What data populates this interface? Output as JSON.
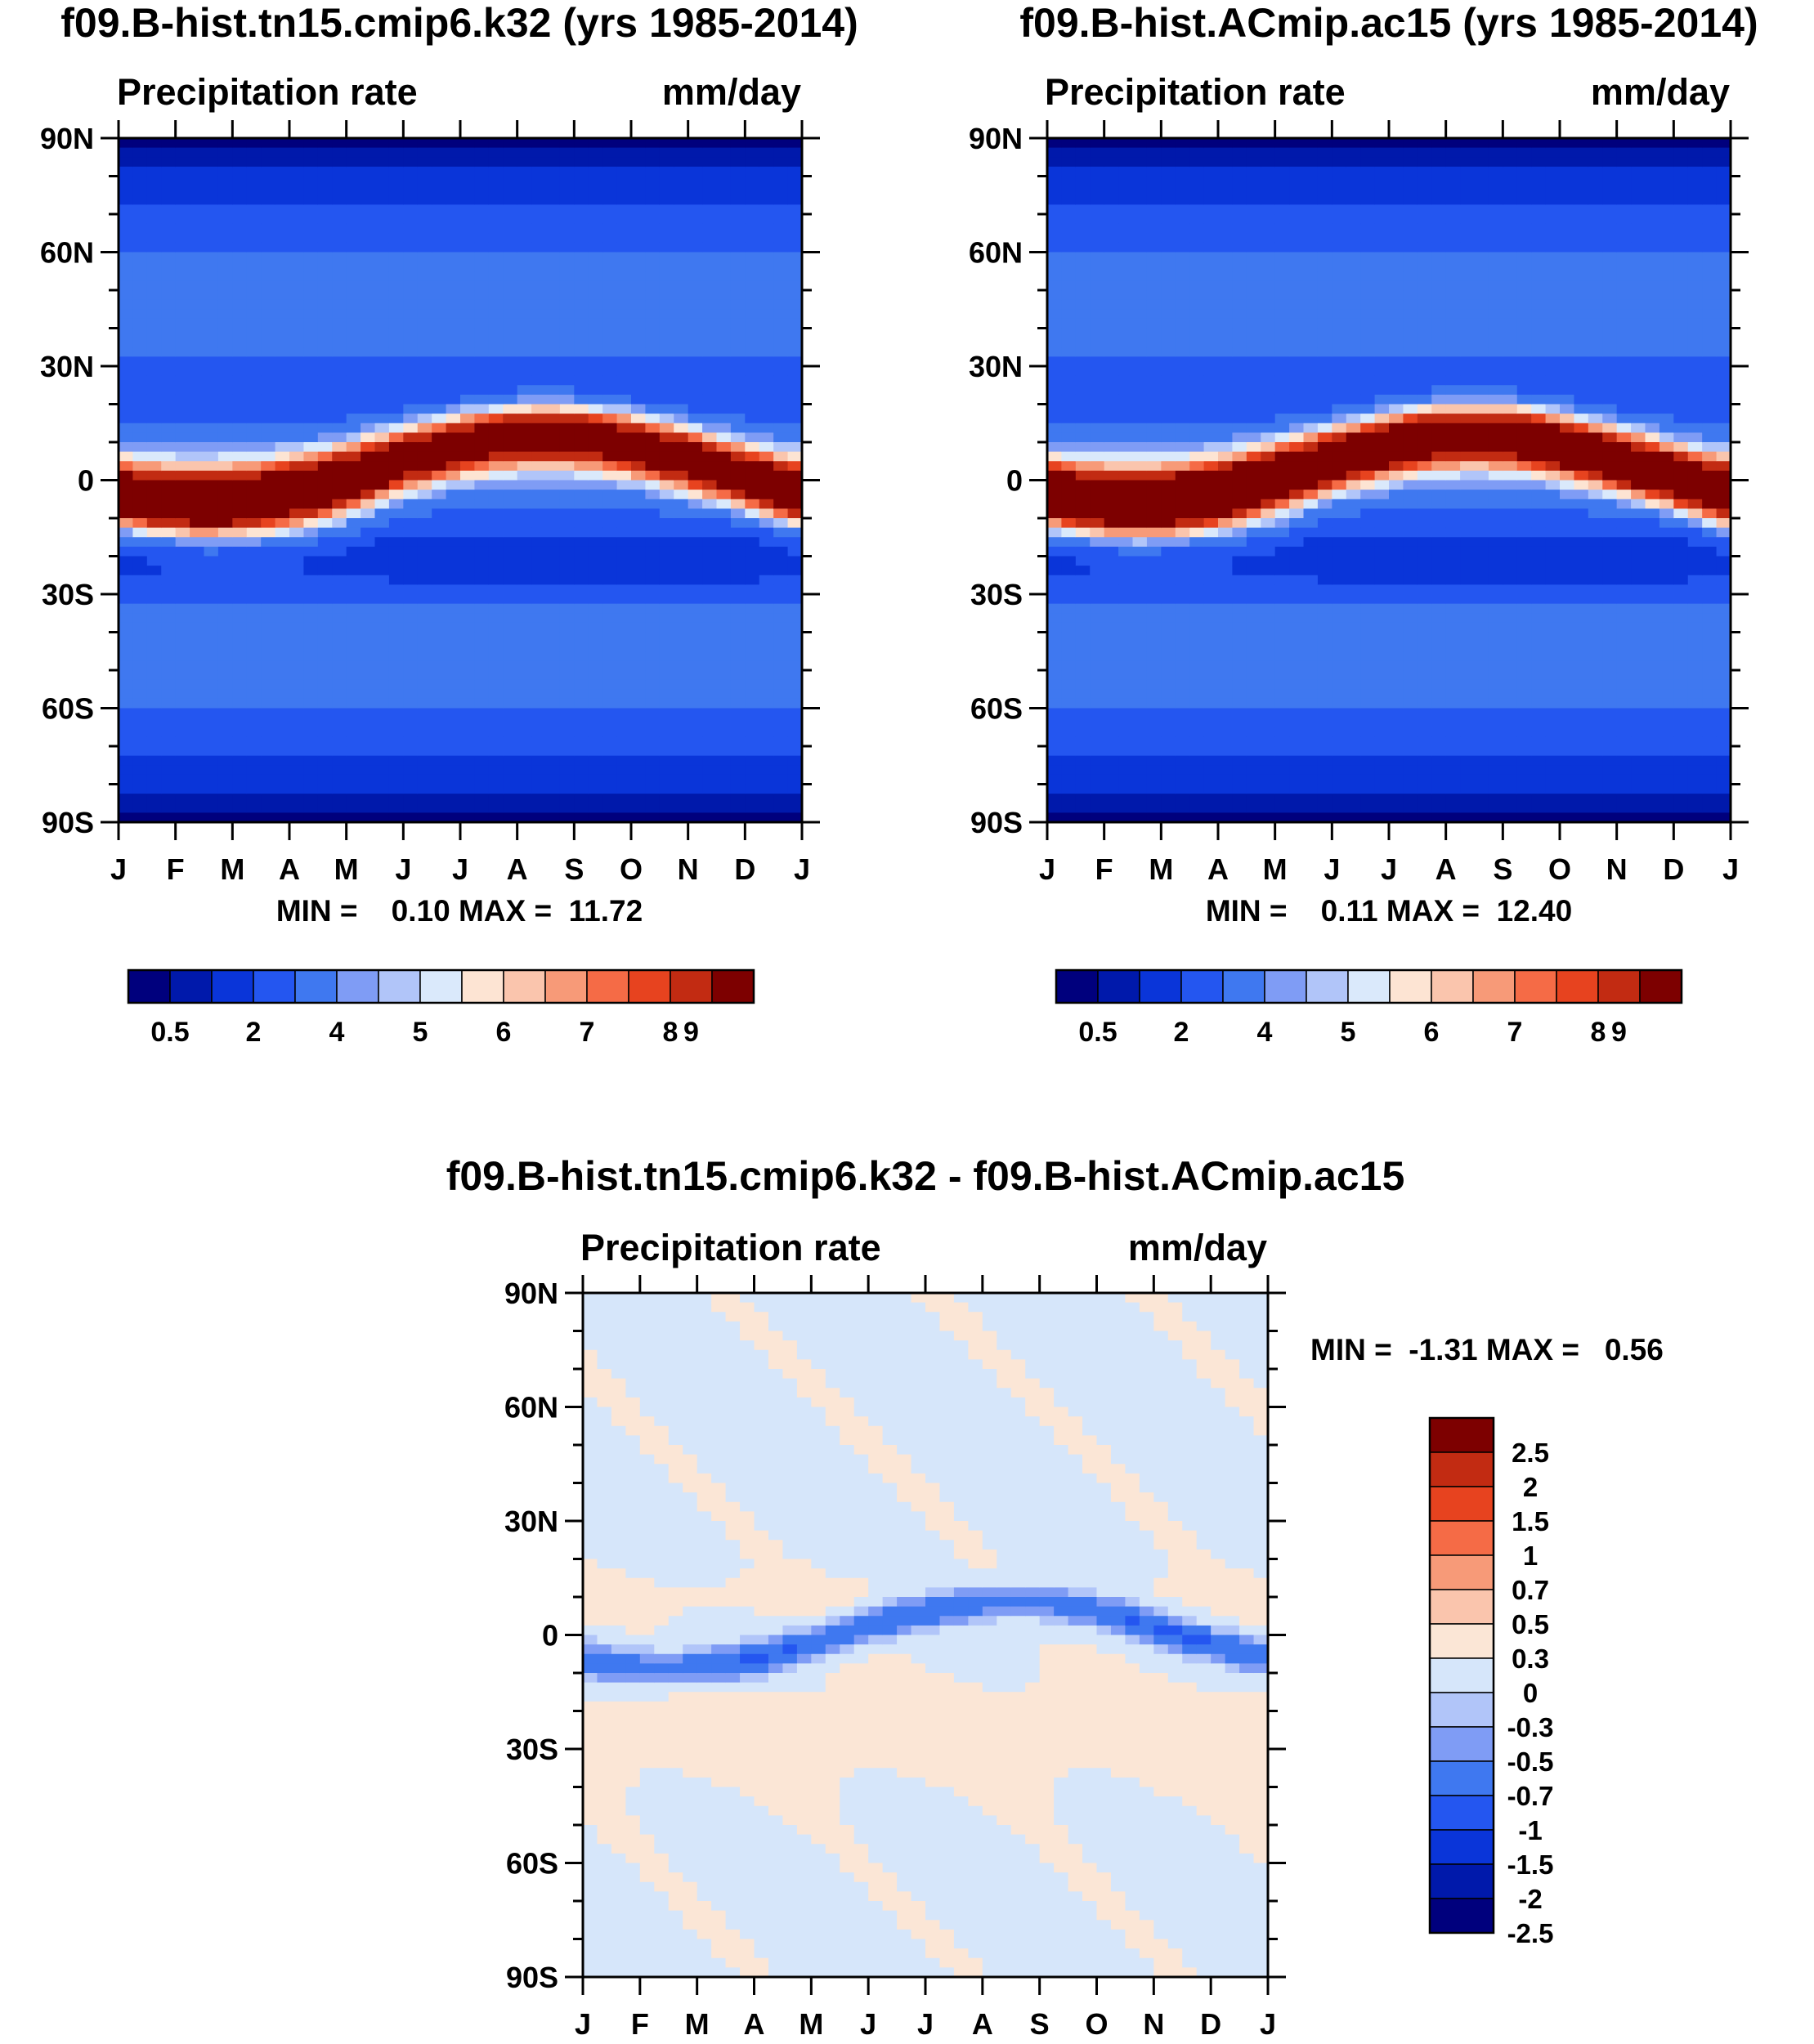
{
  "colors": {
    "abs_scale": [
      "#00007d",
      "#0019ab",
      "#0a35d9",
      "#2456f0",
      "#3f78f0",
      "#7f9cf5",
      "#b1c5f9",
      "#dae9fb",
      "#fde4d3",
      "#fac5ad",
      "#f79a78",
      "#f56b46",
      "#e7431f",
      "#c22b12",
      "#7d0000"
    ],
    "diff_scale": [
      "#00007d",
      "#0019ab",
      "#0a35d9",
      "#2456f0",
      "#3f78f0",
      "#7f9cf5",
      "#b1c5f9",
      "#d6e6fa",
      "#fbe6d6",
      "#fac5ad",
      "#f79a78",
      "#f56b46",
      "#e7431f",
      "#c22b12",
      "#7d0000"
    ]
  },
  "months": [
    "J",
    "F",
    "M",
    "A",
    "M",
    "J",
    "J",
    "A",
    "S",
    "O",
    "N",
    "D",
    "J"
  ],
  "lat_labels": [
    "90N",
    "60N",
    "30N",
    "0",
    "30S",
    "60S",
    "90S"
  ],
  "panels": [
    {
      "title": "f09.B-hist.tn15.cmip6.k32 (yrs 1985-2014)",
      "left_label": "Precipitation rate",
      "right_label": "mm/day",
      "minmax_text": "MIN =    0.10 MAX =  11.72",
      "itcz_peak": 11.7
    },
    {
      "title": "f09.B-hist.ACmip.ac15 (yrs 1985-2014)",
      "left_label": "Precipitation rate",
      "right_label": "mm/day",
      "minmax_text": "MIN =    0.11 MAX =  12.40",
      "itcz_peak": 12.4
    }
  ],
  "abs_colorbar_labels": [
    "0.5",
    "2",
    "4",
    "5",
    "6",
    "7",
    "8",
    "9"
  ],
  "diff_panel": {
    "title": "f09.B-hist.tn15.cmip6.k32 - f09.B-hist.ACmip.ac15",
    "left_label": "Precipitation rate",
    "right_label": "mm/day",
    "minmax_text": "MIN =  -1.31 MAX =   0.56"
  },
  "diff_colorbar_labels": [
    "2.5",
    "2",
    "1.5",
    "1",
    "0.7",
    "0.5",
    "0.3",
    "0",
    "-0.3",
    "-0.5",
    "-0.7",
    "-1",
    "-1.5",
    "-2",
    "-2.5"
  ],
  "chart_data": [
    {
      "type": "heatmap",
      "title": "f09.B-hist.tn15.cmip6.k32 (yrs 1985-2014)",
      "variable": "Precipitation rate",
      "units": "mm/day",
      "x": "month (J..J)",
      "y": "latitude (90S..90N)",
      "min": 0.1,
      "max": 11.72,
      "levels": [
        0.5,
        1,
        2,
        3,
        4,
        4.5,
        5,
        5.5,
        6,
        6.5,
        7,
        7.5,
        8,
        9
      ]
    },
    {
      "type": "heatmap",
      "title": "f09.B-hist.ACmip.ac15 (yrs 1985-2014)",
      "variable": "Precipitation rate",
      "units": "mm/day",
      "x": "month (J..J)",
      "y": "latitude (90S..90N)",
      "min": 0.11,
      "max": 12.4,
      "levels": [
        0.5,
        1,
        2,
        3,
        4,
        4.5,
        5,
        5.5,
        6,
        6.5,
        7,
        7.5,
        8,
        9
      ]
    },
    {
      "type": "heatmap",
      "title": "f09.B-hist.tn15.cmip6.k32 - f09.B-hist.ACmip.ac15",
      "variable": "Precipitation rate difference",
      "units": "mm/day",
      "x": "month (J..J)",
      "y": "latitude (90S..90N)",
      "min": -1.31,
      "max": 0.56,
      "levels": [
        -2.5,
        -2,
        -1.5,
        -1,
        -0.7,
        -0.5,
        -0.3,
        0,
        0.3,
        0.5,
        0.7,
        1,
        1.5,
        2,
        2.5
      ]
    }
  ]
}
